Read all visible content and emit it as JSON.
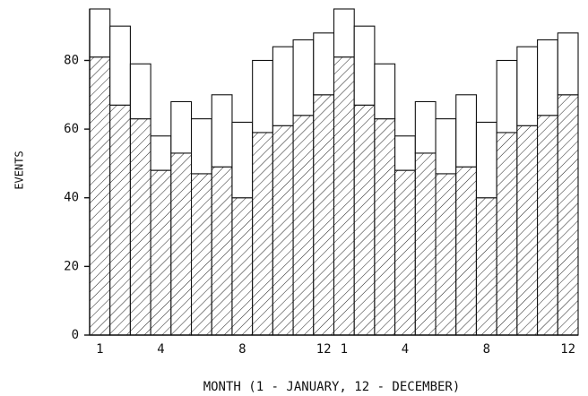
{
  "chart_data": {
    "type": "stacked_bar",
    "x_label": "MONTH (1 - JANUARY, 12 - DECEMBER)",
    "y_label": "EVENTS",
    "categories": [
      "1",
      null,
      null,
      "4",
      null,
      null,
      null,
      "8",
      null,
      null,
      null,
      "12",
      "1",
      null,
      null,
      "4",
      null,
      null,
      null,
      "8",
      null,
      null,
      null,
      "12"
    ],
    "series": [
      {
        "color": "#111111",
        "pattern": "diagonal-hatch",
        "values": [
          81,
          67,
          63,
          48,
          53,
          47,
          49,
          40,
          59,
          61,
          64,
          70,
          81,
          67,
          63,
          48,
          53,
          47,
          49,
          40,
          59,
          61,
          64,
          70
        ]
      },
      {
        "color": "#111111",
        "pattern": "none",
        "values": [
          14,
          23,
          16,
          10,
          15,
          16,
          21,
          22,
          21,
          23,
          22,
          18,
          14,
          23,
          16,
          10,
          15,
          16,
          21,
          22,
          21,
          23,
          22,
          18
        ]
      }
    ],
    "ylim": [
      0,
      95
    ],
    "yticks": [
      0,
      20,
      40,
      60,
      80
    ],
    "grid": false
  }
}
